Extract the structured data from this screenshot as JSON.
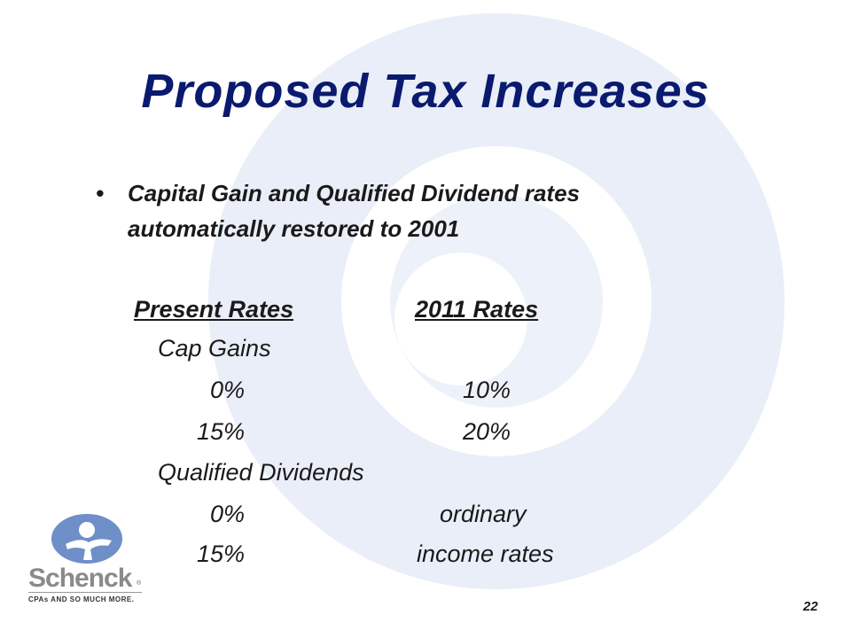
{
  "slide": {
    "title": "Proposed Tax Increases",
    "bullet": "Capital Gain and Qualified Dividend rates automatically restored to 2001",
    "table": {
      "header_left": "Present Rates",
      "header_right": "2011 Rates",
      "cap_gains_label": "Cap Gains",
      "cap_gains_rows": [
        {
          "present": "0%",
          "future": "10%"
        },
        {
          "present": "15%",
          "future": "20%"
        }
      ],
      "dividends_label": "Qualified Dividends",
      "dividends_rows": [
        {
          "present": "0%",
          "future": "ordinary"
        },
        {
          "present": "15%",
          "future": "income rates"
        }
      ]
    },
    "page_number": "22"
  },
  "logo": {
    "name": "Schenck",
    "registered": "®",
    "tagline": "CPAs AND SO MUCH MORE."
  },
  "colors": {
    "title": "#0a1a6e",
    "swirl": "#e8edf7",
    "logo_blue": "#6f8fc8"
  }
}
